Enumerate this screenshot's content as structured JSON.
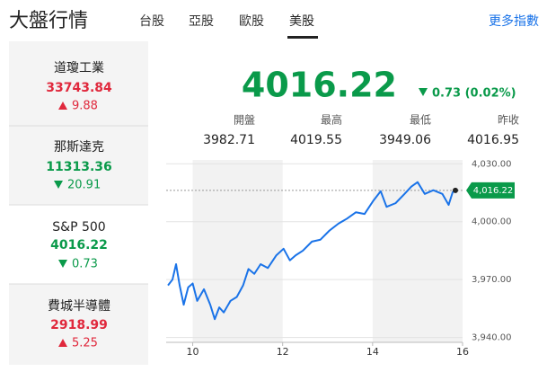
{
  "header": {
    "title": "大盤行情",
    "tabs": [
      "台股",
      "亞股",
      "歐股",
      "美股"
    ],
    "more": "更多指數"
  },
  "indices": [
    {
      "name": "道瓊工業",
      "value": "33743.84",
      "change": "9.88"
    },
    {
      "name": "那斯達克",
      "value": "11313.36",
      "change": "20.91"
    },
    {
      "name": "S&P 500",
      "value": "4016.22",
      "change": "0.73"
    },
    {
      "name": "費城半導體",
      "value": "2918.99",
      "change": "5.25"
    }
  ],
  "quote": {
    "price": "4016.22",
    "change": "0.73 (0.02%)"
  },
  "stats": [
    {
      "label": "開盤",
      "value": "3982.71"
    },
    {
      "label": "最高",
      "value": "4019.55"
    },
    {
      "label": "最低",
      "value": "3949.06"
    },
    {
      "label": "昨收",
      "value": "4016.95"
    }
  ],
  "chart_data": {
    "type": "line",
    "x": [
      9.45,
      9.55,
      9.63,
      9.71,
      9.8,
      9.9,
      10,
      10.1,
      10.25,
      10.39,
      10.49,
      10.59,
      10.69,
      10.84,
      10.98,
      11.12,
      11.24,
      11.37,
      11.51,
      11.67,
      11.86,
      12.02,
      12.16,
      12.29,
      12.45,
      12.65,
      12.84,
      13.04,
      13.24,
      13.43,
      13.63,
      13.82,
      14.02,
      14.18,
      14.31,
      14.51,
      14.71,
      14.86,
      15,
      15.16,
      15.35,
      15.55,
      15.69,
      15.78,
      15.84
    ],
    "series": [
      {
        "color": "#1a73e8",
        "values": [
          3967,
          3970,
          3978,
          3967,
          3957,
          3966,
          3968,
          3959,
          3965,
          3957,
          3949.5,
          3955.6,
          3953,
          3959,
          3961,
          3967,
          3975.5,
          3973,
          3978,
          3976,
          3982.6,
          3986,
          3980,
          3982.6,
          3985,
          3989.7,
          3990.7,
          3995.4,
          3999,
          4001.6,
          4004.9,
          4004,
          4011,
          4015.8,
          4007.7,
          4009.6,
          4014.4,
          4018.2,
          4020.5,
          4014.4,
          4016.3,
          4014.4,
          4008.7,
          4015.3,
          4016.22
        ]
      }
    ],
    "annotations": [
      {
        "y": 4016.22,
        "label": "4,016.22"
      }
    ],
    "xlim": [
      9.41,
      16
    ],
    "xticks": [
      10,
      12,
      14,
      16
    ],
    "ylim": [
      3937.5,
      4032
    ],
    "yticks": [
      {
        "value": 3940,
        "label": "3,940.00"
      },
      {
        "value": 3970,
        "label": "3,970.00"
      },
      {
        "value": 4000,
        "label": "4,000.00"
      },
      {
        "value": 4030,
        "label": "4,030.00"
      }
    ],
    "grid": true
  }
}
